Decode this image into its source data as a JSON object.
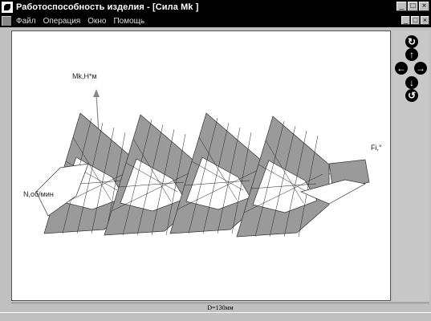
{
  "window": {
    "title": "Работоспособность изделия - [Сила Mk ]",
    "minimize": "_",
    "maximize": "□",
    "close": "×"
  },
  "menu": {
    "items": [
      "Файл",
      "Операция",
      "Окно",
      "Помощь"
    ],
    "mdi_minimize": "_",
    "mdi_restore": "□",
    "mdi_close": "×"
  },
  "plot": {
    "y_axis_label": "Mk,Н*м",
    "x_axis_label": "Fi,°",
    "z_axis_label": "N,об/мин",
    "surface_color": "#9a9a9a",
    "surface_light": "#ffffff"
  },
  "nav": {
    "rotate_cw": "↻",
    "up": "↑",
    "left": "←",
    "right": "→",
    "down": "↓",
    "rotate_ccw": "↺"
  },
  "status": {
    "text": "D=130мм"
  }
}
